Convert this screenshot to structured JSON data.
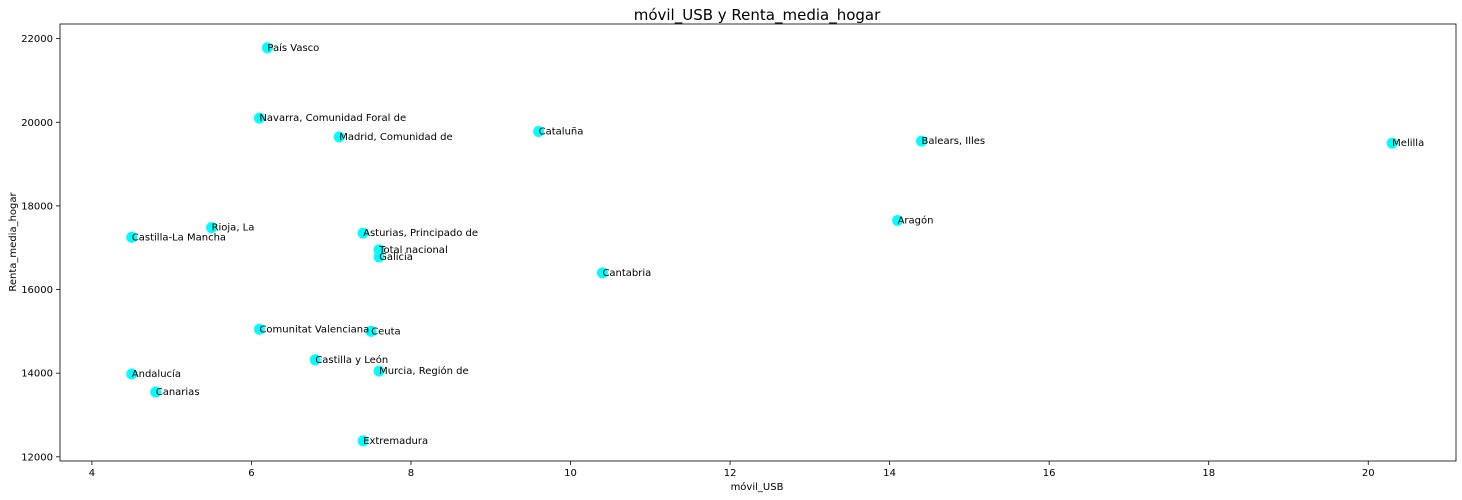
{
  "chart_data": {
    "type": "scatter",
    "title": "móvil_USB y Renta_media_hogar",
    "xlabel": "móvil_USB",
    "ylabel": "Renta_media_hogar",
    "xlim": [
      3.6,
      21.1
    ],
    "ylim": [
      11900,
      22350
    ],
    "xticks": [
      4,
      6,
      8,
      10,
      12,
      14,
      16,
      18,
      20
    ],
    "yticks": [
      12000,
      14000,
      16000,
      18000,
      20000,
      22000
    ],
    "grid": false,
    "marker_color": "#00ffff",
    "points": [
      {
        "label": "País Vasco",
        "x": 6.2,
        "y": 21780
      },
      {
        "label": "Navarra, Comunidad Foral de",
        "x": 6.1,
        "y": 20100
      },
      {
        "label": "Madrid, Comunidad de",
        "x": 7.1,
        "y": 19650
      },
      {
        "label": "Cataluña",
        "x": 9.6,
        "y": 19780
      },
      {
        "label": "Balears, Illes",
        "x": 14.4,
        "y": 19550
      },
      {
        "label": "Melilla",
        "x": 20.3,
        "y": 19500
      },
      {
        "label": "Aragón",
        "x": 14.1,
        "y": 17650
      },
      {
        "label": "Rioja, La",
        "x": 5.5,
        "y": 17480
      },
      {
        "label": "Castilla-La Mancha",
        "x": 4.5,
        "y": 17250
      },
      {
        "label": "Asturias, Principado de",
        "x": 7.4,
        "y": 17350
      },
      {
        "label": "Total nacional",
        "x": 7.6,
        "y": 16950
      },
      {
        "label": "Galicia",
        "x": 7.6,
        "y": 16780
      },
      {
        "label": "Cantabria",
        "x": 10.4,
        "y": 16400
      },
      {
        "label": "Comunitat Valenciana",
        "x": 6.1,
        "y": 15050
      },
      {
        "label": "Ceuta",
        "x": 7.5,
        "y": 15000
      },
      {
        "label": "Castilla y León",
        "x": 6.8,
        "y": 14320
      },
      {
        "label": "Murcia, Región de",
        "x": 7.6,
        "y": 14050
      },
      {
        "label": "Andalucía",
        "x": 4.5,
        "y": 13980
      },
      {
        "label": "Canarias",
        "x": 4.8,
        "y": 13550
      },
      {
        "label": "Extremadura",
        "x": 7.4,
        "y": 12380
      }
    ]
  }
}
